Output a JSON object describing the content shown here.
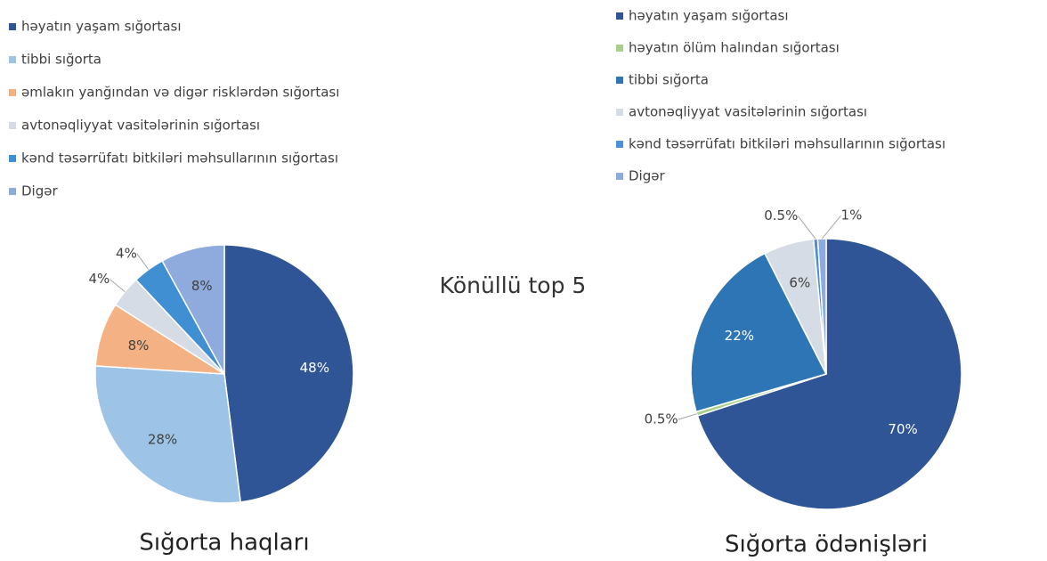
{
  "heading": "Könüllü top 5",
  "chart_data": [
    {
      "type": "pie",
      "title": "Sığorta haqları",
      "categories": [
        "həyatın yaşam sığortası",
        "tibbi sığorta",
        "əmlakın yanğından və digər risklərdən sığortası",
        "avtonəqliyyat vasitələrinin sığortası",
        "kənd təsərrüfatı bitkiləri məhsullarının sığortası",
        "Digər"
      ],
      "values": [
        48,
        28,
        8,
        4,
        4,
        8
      ],
      "value_labels": [
        "48%",
        "28%",
        "8%",
        "4%",
        "4%",
        "8%"
      ],
      "colors": [
        "#2f5597",
        "#9dc3e6",
        "#f4b183",
        "#d6dce5",
        "#3f8fd2",
        "#8faadc"
      ]
    },
    {
      "type": "pie",
      "title": "Sığorta ödənişləri",
      "categories": [
        "həyatın yaşam sığortası",
        "həyatın ölüm halından sığortası",
        "tibbi sığorta",
        "avtonəqliyyat vasitələrinin sığortası",
        "kənd təsərrüfatı bitkiləri məhsullarının sığortası",
        "Digər"
      ],
      "values": [
        70,
        0.5,
        22,
        6,
        0.5,
        1
      ],
      "value_labels": [
        "70%",
        "0.5%",
        "22%",
        "6%",
        "0.5%",
        "1%"
      ],
      "colors": [
        "#2f5597",
        "#a9d18e",
        "#2e75b6",
        "#d6dce5",
        "#4a90d9",
        "#8faadc"
      ]
    }
  ]
}
